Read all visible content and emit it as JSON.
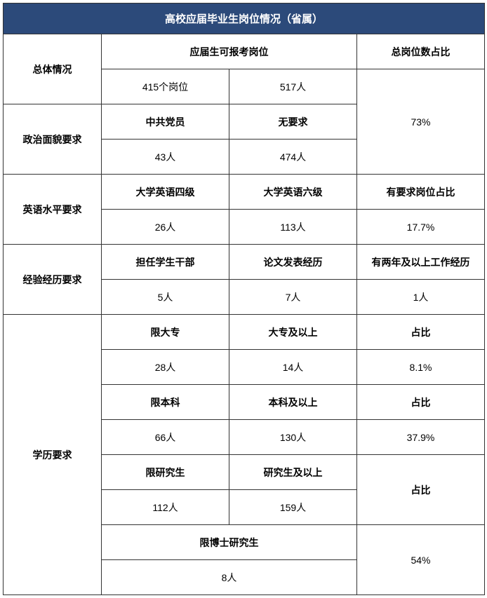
{
  "title": "高校应届毕业生岗位情况（省属）",
  "colors": {
    "header_bg": "#2c4a7a",
    "header_text": "#ffffff",
    "border": "#333333",
    "text": "#000000",
    "bg": "#ffffff"
  },
  "rows": {
    "overall": {
      "label": "总体情况",
      "sub_header": "应届生可报考岗位",
      "col4_header": "总岗位数占比",
      "val1": "415个岗位",
      "val2": "517人"
    },
    "political": {
      "label": "政治面貌要求",
      "h1": "中共党员",
      "h2": "无要求",
      "v1": "43人",
      "v2": "474人",
      "ratio": "73%"
    },
    "english": {
      "label": "英语水平要求",
      "h1": "大学英语四级",
      "h2": "大学英语六级",
      "h3": "有要求岗位占比",
      "v1": "26人",
      "v2": "113人",
      "v3": "17.7%"
    },
    "experience": {
      "label": "经验经历要求",
      "h1": "担任学生干部",
      "h2": "论文发表经历",
      "h3": "有两年及以上工作经历",
      "v1": "5人",
      "v2": "7人",
      "v3": "1人"
    },
    "education": {
      "label": "学历要求",
      "r1h1": "限大专",
      "r1h2": "大专及以上",
      "r1h3": "占比",
      "r1v1": "28人",
      "r1v2": "14人",
      "r1v3": "8.1%",
      "r2h1": "限本科",
      "r2h2": "本科及以上",
      "r2h3": "占比",
      "r2v1": "66人",
      "r2v2": "130人",
      "r2v3": "37.9%",
      "r3h1": "限研究生",
      "r3h2": "研究生及以上",
      "r3h3": "占比",
      "r3v1": "112人",
      "r3v2": "159人",
      "r4h1": "限博士研究生",
      "r4v1": "8人",
      "r4ratio": "54%"
    }
  }
}
